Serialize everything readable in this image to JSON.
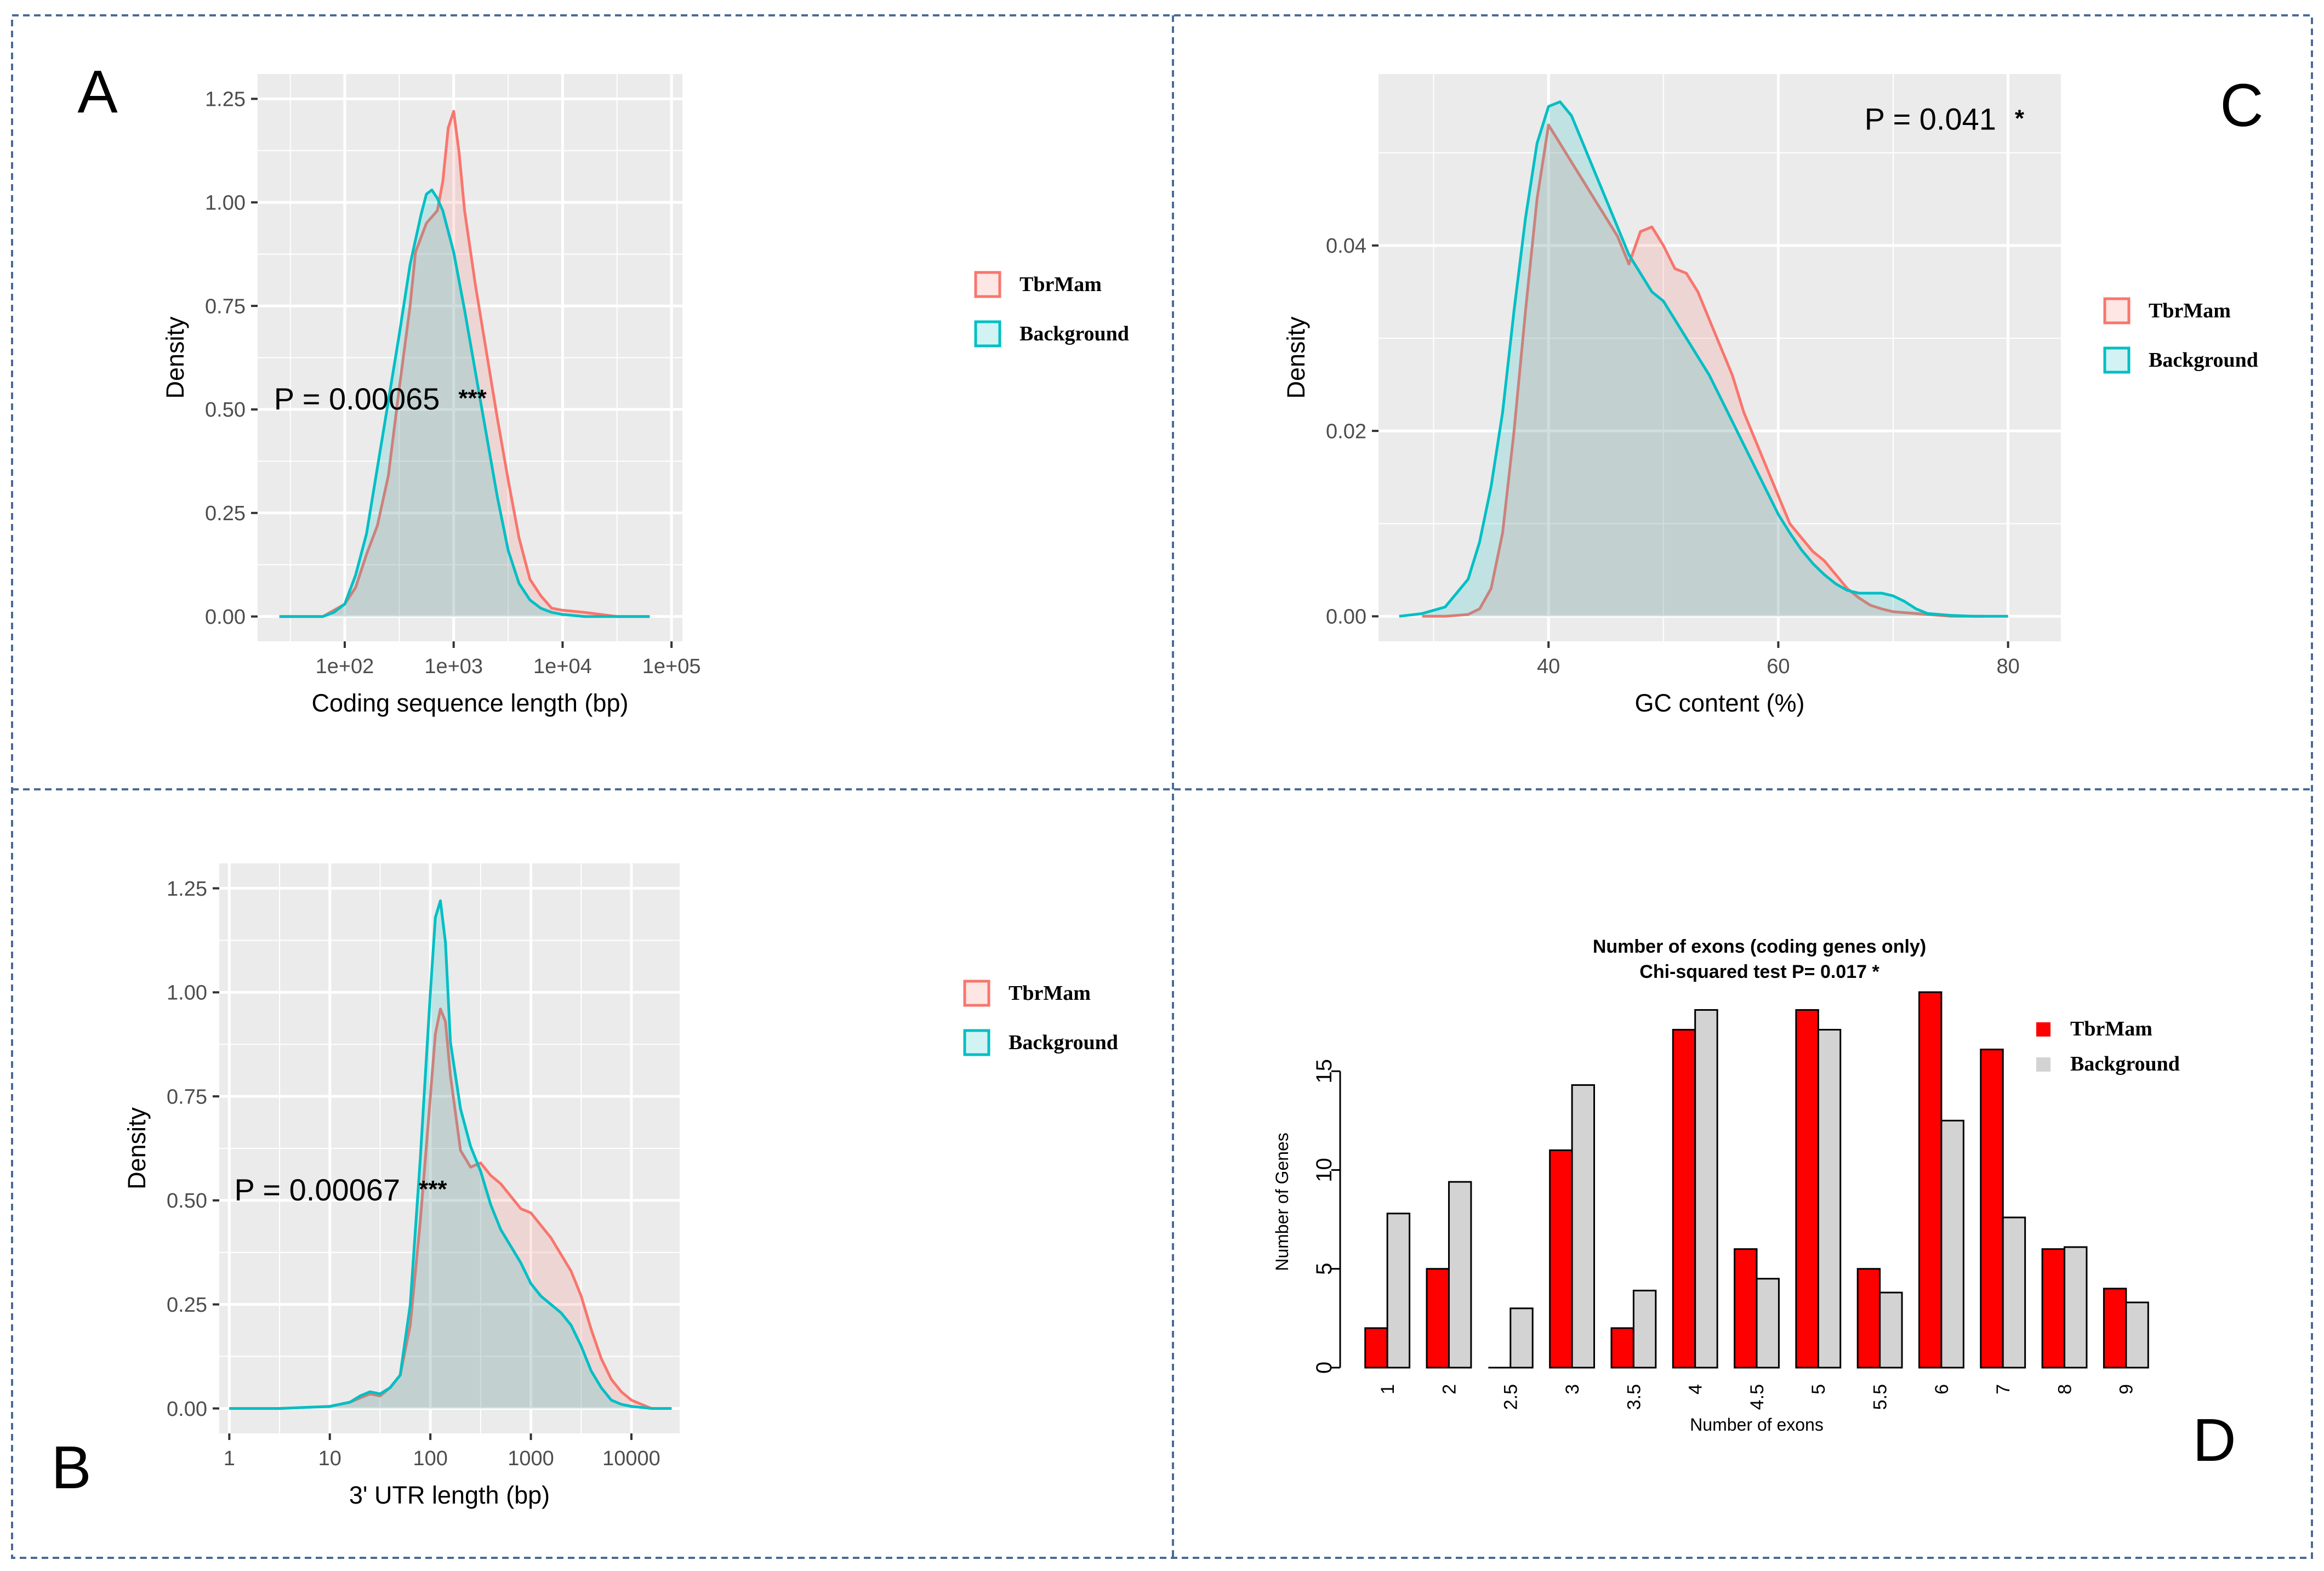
{
  "panels": [
    {
      "id": "A",
      "letter": "A",
      "type": "density",
      "xscale": "log",
      "xlabel": "Coding sequence length (bp)",
      "ylabel": "Density",
      "xlim": [
        1.2,
        5.1
      ],
      "ylim": [
        -0.06,
        1.31
      ],
      "xticks": [
        2,
        3,
        4,
        5
      ],
      "xtick_labels": [
        "1e+02",
        "1e+03",
        "1e+04",
        "1e+05"
      ],
      "yticks": [
        0,
        0.25,
        0.5,
        0.75,
        1.0,
        1.25
      ],
      "ytick_labels": [
        "0.00",
        "0.25",
        "0.50",
        "0.75",
        "1.00",
        "1.25"
      ],
      "annotation": {
        "text": "P = 0.00065",
        "stars": "***",
        "x": 1.35,
        "y": 0.5
      },
      "legend": [
        {
          "label": "TbrMam",
          "series": "TbrMam"
        },
        {
          "label": "Background",
          "series": "Background"
        }
      ],
      "series": [
        {
          "name": "TbrMam",
          "x": [
            1.4,
            1.6,
            1.8,
            2.0,
            2.1,
            2.2,
            2.3,
            2.4,
            2.5,
            2.6,
            2.65,
            2.75,
            2.85,
            2.9,
            2.95,
            3.0,
            3.05,
            3.1,
            3.2,
            3.3,
            3.4,
            3.5,
            3.6,
            3.7,
            3.8,
            3.9,
            4.0,
            4.2,
            4.5,
            4.8
          ],
          "y": [
            0,
            0,
            0,
            0.03,
            0.07,
            0.15,
            0.22,
            0.34,
            0.55,
            0.75,
            0.88,
            0.95,
            0.98,
            1.05,
            1.18,
            1.22,
            1.12,
            0.98,
            0.8,
            0.64,
            0.48,
            0.33,
            0.19,
            0.09,
            0.05,
            0.02,
            0.015,
            0.01,
            0,
            0
          ]
        },
        {
          "name": "Background",
          "x": [
            1.4,
            1.6,
            1.8,
            1.9,
            2.0,
            2.1,
            2.2,
            2.3,
            2.4,
            2.5,
            2.6,
            2.7,
            2.75,
            2.8,
            2.85,
            2.9,
            3.0,
            3.1,
            3.2,
            3.3,
            3.4,
            3.5,
            3.6,
            3.7,
            3.8,
            3.9,
            4.0,
            4.2,
            4.5,
            4.8
          ],
          "y": [
            0,
            0,
            0,
            0.01,
            0.03,
            0.1,
            0.2,
            0.36,
            0.52,
            0.68,
            0.85,
            0.97,
            1.02,
            1.03,
            1.01,
            0.98,
            0.88,
            0.74,
            0.59,
            0.44,
            0.29,
            0.16,
            0.08,
            0.04,
            0.02,
            0.01,
            0.005,
            0,
            0,
            0
          ]
        }
      ]
    },
    {
      "id": "B",
      "letter": "B",
      "type": "density",
      "xscale": "log",
      "xlabel": "3' UTR length (bp)",
      "ylabel": "Density",
      "xlim": [
        -0.1,
        4.48
      ],
      "ylim": [
        -0.06,
        1.31
      ],
      "xticks": [
        0,
        1,
        2,
        3,
        4
      ],
      "xtick_labels": [
        "1",
        "10",
        "100",
        "1000",
        "10000"
      ],
      "yticks": [
        0,
        0.25,
        0.5,
        0.75,
        1.0,
        1.25
      ],
      "ytick_labels": [
        "0.00",
        "0.25",
        "0.50",
        "0.75",
        "1.00",
        "1.25"
      ],
      "annotation": {
        "text": "P = 0.00067",
        "stars": "***",
        "x": 0.05,
        "y": 0.5
      },
      "legend": [
        {
          "label": "TbrMam",
          "series": "TbrMam"
        },
        {
          "label": "Background",
          "series": "Background"
        }
      ],
      "series": [
        {
          "name": "TbrMam",
          "x": [
            0,
            0.5,
            1.0,
            1.2,
            1.3,
            1.4,
            1.5,
            1.6,
            1.7,
            1.8,
            1.9,
            2.0,
            2.05,
            2.1,
            2.15,
            2.2,
            2.3,
            2.4,
            2.5,
            2.6,
            2.7,
            2.8,
            2.9,
            3.0,
            3.1,
            3.2,
            3.3,
            3.4,
            3.5,
            3.6,
            3.7,
            3.8,
            3.9,
            4.0,
            4.2,
            4.4
          ],
          "y": [
            0,
            0,
            0.005,
            0.015,
            0.025,
            0.035,
            0.03,
            0.05,
            0.08,
            0.2,
            0.45,
            0.75,
            0.9,
            0.96,
            0.93,
            0.8,
            0.62,
            0.58,
            0.59,
            0.56,
            0.54,
            0.51,
            0.48,
            0.47,
            0.44,
            0.41,
            0.37,
            0.33,
            0.27,
            0.19,
            0.12,
            0.07,
            0.04,
            0.02,
            0,
            0
          ]
        },
        {
          "name": "Background",
          "x": [
            0,
            0.5,
            1.0,
            1.2,
            1.3,
            1.4,
            1.5,
            1.6,
            1.7,
            1.8,
            1.9,
            2.0,
            2.05,
            2.1,
            2.15,
            2.2,
            2.3,
            2.4,
            2.5,
            2.6,
            2.7,
            2.8,
            2.9,
            3.0,
            3.1,
            3.2,
            3.3,
            3.4,
            3.5,
            3.6,
            3.7,
            3.8,
            3.9,
            4.0,
            4.2,
            4.4
          ],
          "y": [
            0,
            0,
            0.005,
            0.015,
            0.03,
            0.04,
            0.035,
            0.05,
            0.08,
            0.25,
            0.6,
            1.0,
            1.18,
            1.22,
            1.12,
            0.88,
            0.72,
            0.63,
            0.57,
            0.49,
            0.43,
            0.39,
            0.35,
            0.3,
            0.27,
            0.25,
            0.23,
            0.2,
            0.15,
            0.09,
            0.05,
            0.02,
            0.01,
            0.005,
            0,
            0
          ]
        }
      ]
    },
    {
      "id": "C",
      "letter": "C",
      "type": "density",
      "xscale": "linear",
      "xlabel": "GC content (%)",
      "ylabel": "Density",
      "xlim": [
        25.2,
        84.6
      ],
      "ylim": [
        -0.0027,
        0.0585
      ],
      "xticks": [
        40,
        60,
        80
      ],
      "xtick_labels": [
        "40",
        "60",
        "80"
      ],
      "yticks": [
        0,
        0.02,
        0.04
      ],
      "ytick_labels": [
        "0.00",
        "0.02",
        "0.04"
      ],
      "annotation": {
        "text": "P = 0.041",
        "stars": "*",
        "x": 67.5,
        "y": 0.0525
      },
      "legend": [
        {
          "label": "TbrMam",
          "series": "TbrMam"
        },
        {
          "label": "Background",
          "series": "Background"
        }
      ],
      "series": [
        {
          "name": "TbrMam",
          "x": [
            29,
            31,
            33,
            34,
            35,
            36,
            37,
            38,
            39,
            40,
            41,
            42,
            43,
            44,
            45,
            46,
            47,
            48,
            49,
            50,
            51,
            52,
            53,
            54,
            55,
            56,
            57,
            58,
            59,
            60,
            61,
            62,
            63,
            64,
            65,
            66,
            67,
            68,
            69,
            70,
            71,
            72,
            73,
            75,
            78
          ],
          "y": [
            0,
            0,
            0.0002,
            0.0008,
            0.003,
            0.009,
            0.02,
            0.033,
            0.045,
            0.053,
            0.051,
            0.049,
            0.047,
            0.045,
            0.043,
            0.041,
            0.038,
            0.0415,
            0.042,
            0.04,
            0.0375,
            0.037,
            0.035,
            0.032,
            0.029,
            0.026,
            0.022,
            0.019,
            0.016,
            0.013,
            0.01,
            0.0085,
            0.007,
            0.006,
            0.0045,
            0.003,
            0.002,
            0.0012,
            0.0008,
            0.0005,
            0.0004,
            0.0003,
            0.0002,
            0,
            0
          ]
        },
        {
          "name": "Background",
          "x": [
            27,
            29,
            31,
            33,
            34,
            35,
            36,
            37,
            38,
            39,
            40,
            41,
            42,
            43,
            44,
            45,
            46,
            47,
            48,
            49,
            50,
            51,
            52,
            53,
            54,
            55,
            56,
            57,
            58,
            59,
            60,
            61,
            62,
            63,
            64,
            65,
            66,
            67,
            68,
            69,
            70,
            71,
            72,
            73,
            75,
            77,
            80
          ],
          "y": [
            0,
            0.0003,
            0.001,
            0.004,
            0.008,
            0.014,
            0.022,
            0.033,
            0.043,
            0.051,
            0.055,
            0.0555,
            0.054,
            0.051,
            0.048,
            0.045,
            0.042,
            0.039,
            0.037,
            0.035,
            0.034,
            0.032,
            0.03,
            0.028,
            0.026,
            0.0235,
            0.021,
            0.0185,
            0.016,
            0.0135,
            0.011,
            0.009,
            0.0072,
            0.0057,
            0.0045,
            0.0035,
            0.0028,
            0.0025,
            0.0025,
            0.0025,
            0.0022,
            0.0016,
            0.0008,
            0.0003,
            0.0001,
            0,
            0
          ]
        }
      ]
    },
    {
      "id": "D",
      "letter": "D",
      "type": "bar",
      "title": "Number of exons (coding genes only)",
      "subtitle": "Chi-squared test P= 0.017 *",
      "xlabel": "Number of exons",
      "ylabel": "Number of Genes",
      "categories": [
        "1",
        "2",
        "2.5",
        "3",
        "3.5",
        "4",
        "4.5",
        "5",
        "5.5",
        "6",
        "7",
        "8",
        "9"
      ],
      "ylim": [
        0,
        19
      ],
      "yticks": [
        0,
        5,
        10,
        15
      ],
      "ytick_labels": [
        "0",
        "5",
        "10",
        "15"
      ],
      "legend": [
        {
          "label": "TbrMam",
          "series": "TbrMam"
        },
        {
          "label": "Background",
          "series": "Background"
        }
      ],
      "series": [
        {
          "name": "TbrMam",
          "values": [
            2,
            5,
            0,
            11,
            2,
            17.1,
            6,
            18.1,
            5,
            19,
            16.1,
            6,
            4
          ]
        },
        {
          "name": "Background",
          "values": [
            7.8,
            9.4,
            3,
            14.3,
            3.9,
            18.1,
            4.5,
            17.1,
            3.8,
            12.5,
            7.6,
            6.1,
            3.3
          ]
        }
      ]
    }
  ],
  "colors": {
    "TbrMam_line": "#F8766D",
    "TbrMam_fill": "#F8766D",
    "Background_line": "#00BFC4",
    "Background_fill": "#00BFC4",
    "panel_bg": "#EBEBEB",
    "grid": "#FFFFFF",
    "divider": "#4A6A96",
    "bar_TbrMam": "#FF0000",
    "bar_Background": "#D3D3D3"
  }
}
